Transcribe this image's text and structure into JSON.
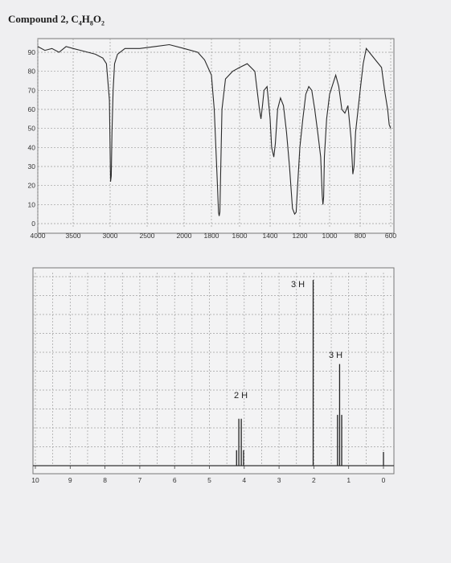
{
  "page": {
    "title_main": "Compound 2, C",
    "formula_c": "4",
    "formula_h": "8",
    "formula_o": "2",
    "title_text": "Compound 2, C4H8O2"
  },
  "chart_data": [
    {
      "type": "line",
      "name": "IR spectrum",
      "xlabel": "",
      "ylabel": "",
      "x_ticks": [
        "4000",
        "3500",
        "3000",
        "2500",
        "2000",
        "1800",
        "1600",
        "1400",
        "1200",
        "1000",
        "800",
        "600"
      ],
      "y_ticks": [
        "0",
        "10",
        "20",
        "30",
        "40",
        "50",
        "60",
        "70",
        "80",
        "90"
      ],
      "xlim": [
        4000,
        600
      ],
      "ylim": [
        0,
        95
      ],
      "grid": true,
      "x": [
        4000,
        3900,
        3800,
        3700,
        3600,
        3500,
        3400,
        3300,
        3200,
        3100,
        3050,
        3010,
        2995,
        2985,
        2975,
        2960,
        2940,
        2900,
        2800,
        2600,
        2400,
        2200,
        2000,
        1900,
        1850,
        1800,
        1780,
        1760,
        1750,
        1745,
        1740,
        1735,
        1725,
        1700,
        1650,
        1600,
        1550,
        1500,
        1470,
        1460,
        1450,
        1440,
        1420,
        1400,
        1390,
        1375,
        1365,
        1350,
        1330,
        1310,
        1290,
        1270,
        1250,
        1235,
        1225,
        1215,
        1200,
        1180,
        1160,
        1140,
        1120,
        1100,
        1080,
        1060,
        1050,
        1045,
        1040,
        1035,
        1020,
        1000,
        960,
        940,
        920,
        900,
        880,
        860,
        848,
        840,
        830,
        800,
        780,
        760,
        740,
        700,
        660,
        640,
        620,
        610,
        600
      ],
      "y": [
        93,
        91,
        92,
        90,
        93,
        92,
        91,
        90,
        89,
        87,
        84,
        65,
        22,
        25,
        48,
        70,
        84,
        89,
        92,
        92,
        93,
        94,
        92,
        90,
        86,
        78,
        60,
        25,
        6,
        4,
        6,
        25,
        60,
        76,
        80,
        82,
        84,
        80,
        60,
        55,
        62,
        70,
        72,
        55,
        40,
        35,
        42,
        60,
        66,
        62,
        48,
        30,
        8,
        5,
        6,
        20,
        40,
        55,
        68,
        72,
        70,
        60,
        48,
        35,
        15,
        10,
        14,
        35,
        55,
        68,
        78,
        72,
        60,
        58,
        62,
        45,
        26,
        30,
        48,
        70,
        84,
        92,
        90,
        86,
        82,
        70,
        60,
        52,
        50
      ]
    },
    {
      "type": "line",
      "name": "1H NMR spectrum",
      "xlabel": "",
      "ylabel": "",
      "x_ticks": [
        "10",
        "9",
        "8",
        "7",
        "6",
        "5",
        "4",
        "3",
        "2",
        "1",
        "0"
      ],
      "xlim": [
        10,
        0
      ],
      "ylim": [
        0,
        10
      ],
      "grid": true,
      "integration_labels": [
        "3 H",
        "3 H",
        "2 H"
      ],
      "peaks": [
        {
          "ppm": 2.02,
          "height": 9.5,
          "multiplicity": "singlet",
          "integration": "3 H"
        },
        {
          "ppm": 4.12,
          "height": 2.4,
          "multiplicity": "quartet",
          "integration": "2 H"
        },
        {
          "ppm": 1.26,
          "height": 5.2,
          "multiplicity": "triplet",
          "integration": "3 H"
        },
        {
          "ppm": 0.0,
          "height": 0.7,
          "multiplicity": "singlet",
          "integration": ""
        }
      ]
    }
  ]
}
